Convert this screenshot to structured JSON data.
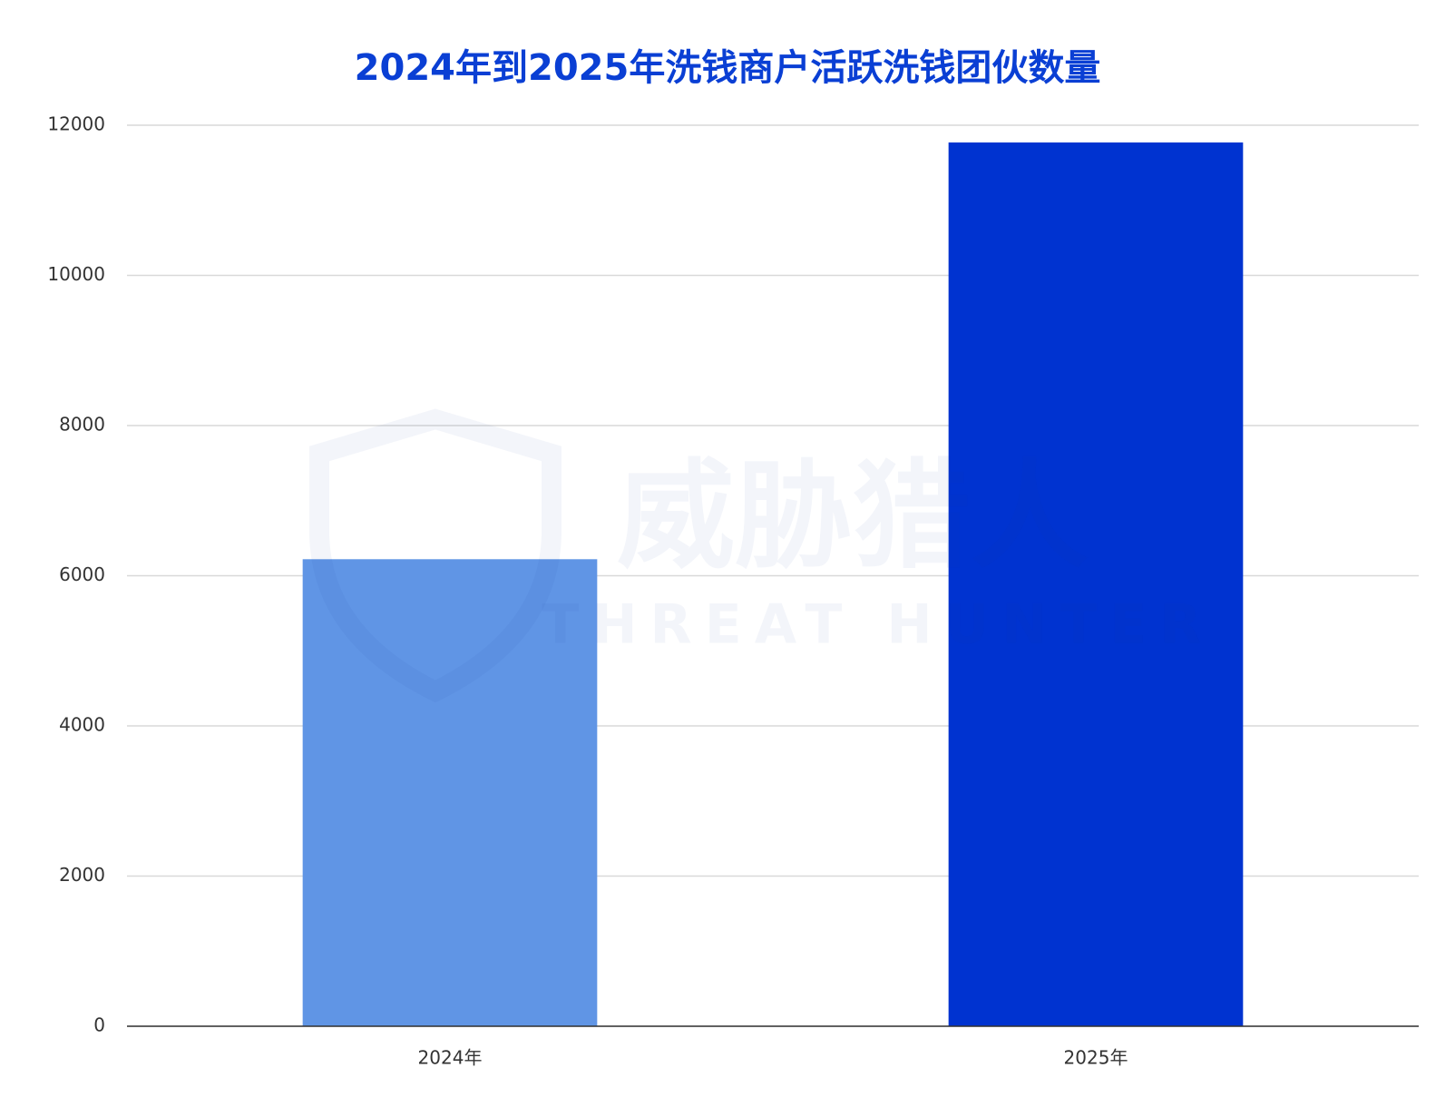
{
  "chart_data": {
    "type": "bar",
    "title": "2024年到2025年洗钱商户活跃洗钱团伙数量",
    "categories": [
      "2024年",
      "2025年"
    ],
    "values": [
      6220,
      11770
    ],
    "colors": [
      "#6095e5",
      "#0033d0"
    ],
    "ylim": [
      0,
      12000
    ],
    "yticks": [
      0,
      2000,
      4000,
      6000,
      8000,
      10000,
      12000
    ],
    "grid": true
  },
  "watermark": {
    "name": "威胁猎人",
    "english": "THREAT HUNTER"
  }
}
